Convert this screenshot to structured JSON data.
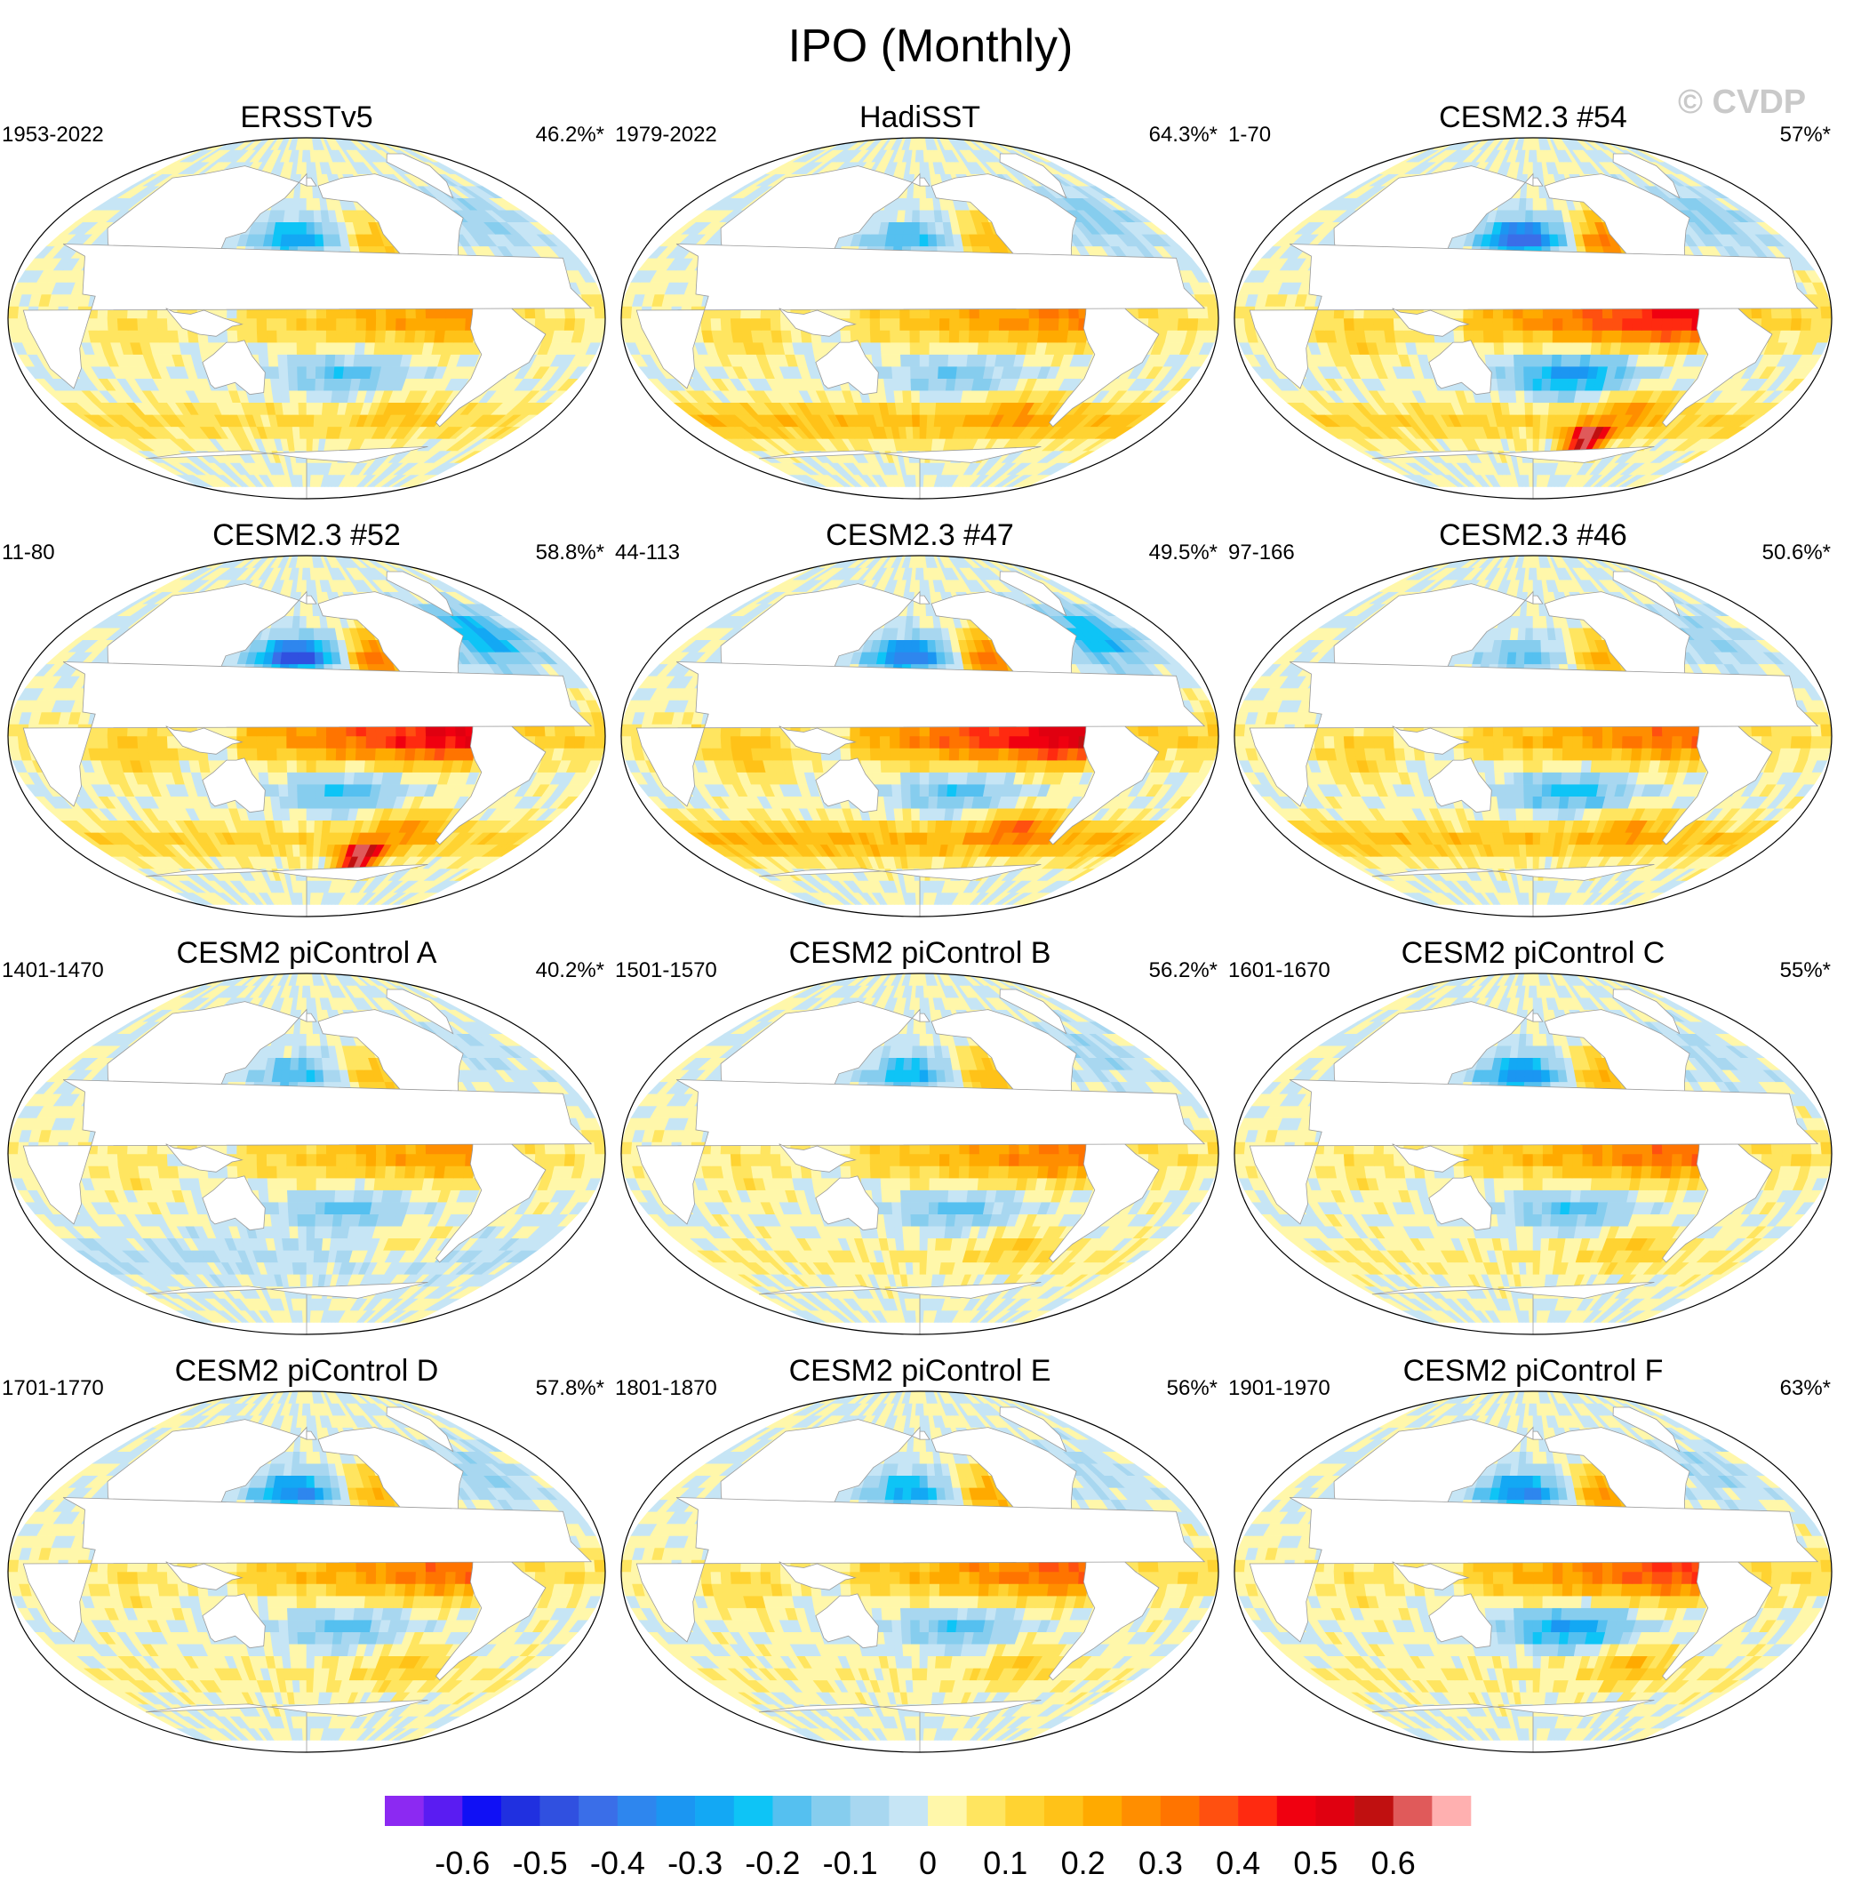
{
  "chart_data": {
    "type": "map-grid",
    "title": "IPO (Monthly)",
    "watermark": "© CVDP",
    "panels": [
      {
        "title": "ERSSTv5",
        "period": "1953-2022",
        "pct": "46.2%*",
        "pattern": {
          "tropical": 0.22,
          "npac": -0.3,
          "spac": -0.18,
          "north_atl": -0.1,
          "south_ocean": 0.1,
          "indian": 0.08,
          "extreme": 0
        }
      },
      {
        "title": "HadiSST",
        "period": "1979-2022",
        "pct": "64.3%*",
        "pattern": {
          "tropical": 0.25,
          "npac": -0.22,
          "spac": -0.15,
          "north_atl": -0.12,
          "south_ocean": 0.18,
          "indian": 0.1,
          "extreme": 0
        }
      },
      {
        "title": "CESM2.3 #54",
        "period": "1-70",
        "pct": "57%*",
        "pattern": {
          "tropical": 0.4,
          "npac": -0.48,
          "spac": -0.32,
          "north_atl": -0.12,
          "south_ocean": 0.12,
          "indian": 0.1,
          "extreme": 1
        }
      },
      {
        "title": "CESM2.3 #52",
        "period": "11-80",
        "pct": "58.8%*",
        "pattern": {
          "tropical": 0.42,
          "npac": -0.52,
          "spac": -0.2,
          "north_atl": -0.28,
          "south_ocean": 0.12,
          "indian": 0.12,
          "extreme": 1
        }
      },
      {
        "title": "CESM2.3 #47",
        "period": "44-113",
        "pct": "49.5%*",
        "pattern": {
          "tropical": 0.45,
          "npac": -0.42,
          "spac": -0.18,
          "north_atl": -0.25,
          "south_ocean": 0.2,
          "indian": 0.14,
          "extreme": 0
        }
      },
      {
        "title": "CESM2.3 #46",
        "period": "97-166",
        "pct": "50.6%*",
        "pattern": {
          "tropical": 0.28,
          "npac": -0.18,
          "spac": -0.22,
          "north_atl": -0.1,
          "south_ocean": 0.16,
          "indian": 0.12,
          "extreme": 0
        }
      },
      {
        "title": "CESM2 piControl A",
        "period": "1401-1470",
        "pct": "40.2%*",
        "pattern": {
          "tropical": 0.22,
          "npac": -0.2,
          "spac": -0.16,
          "north_atl": -0.05,
          "south_ocean": -0.05,
          "indian": 0.05,
          "extreme": 0
        }
      },
      {
        "title": "CESM2 piControl B",
        "period": "1501-1570",
        "pct": "56.2%*",
        "pattern": {
          "tropical": 0.26,
          "npac": -0.26,
          "spac": -0.16,
          "north_atl": -0.08,
          "south_ocean": 0.05,
          "indian": 0.05,
          "extreme": 0
        }
      },
      {
        "title": "CESM2 piControl C",
        "period": "1601-1670",
        "pct": "55%*",
        "pattern": {
          "tropical": 0.28,
          "npac": -0.35,
          "spac": -0.18,
          "north_atl": -0.06,
          "south_ocean": 0.05,
          "indian": 0.05,
          "extreme": 0
        }
      },
      {
        "title": "CESM2 piControl D",
        "period": "1701-1770",
        "pct": "57.8%*",
        "pattern": {
          "tropical": 0.28,
          "npac": -0.38,
          "spac": -0.16,
          "north_atl": -0.1,
          "south_ocean": 0.05,
          "indian": 0.06,
          "extreme": 0
        }
      },
      {
        "title": "CESM2 piControl E",
        "period": "1801-1870",
        "pct": "56%*",
        "pattern": {
          "tropical": 0.3,
          "npac": -0.28,
          "spac": -0.18,
          "north_atl": -0.06,
          "south_ocean": 0.04,
          "indian": 0.08,
          "extreme": 0
        }
      },
      {
        "title": "CESM2 piControl F",
        "period": "1901-1970",
        "pct": "63%*",
        "pattern": {
          "tropical": 0.34,
          "npac": -0.38,
          "spac": -0.3,
          "north_atl": -0.08,
          "south_ocean": 0.05,
          "indian": 0.05,
          "extreme": 0
        }
      }
    ],
    "colorbar": {
      "levels": [
        -0.65,
        -0.6,
        -0.55,
        -0.5,
        -0.45,
        -0.4,
        -0.35,
        -0.3,
        -0.25,
        -0.2,
        -0.15,
        -0.1,
        -0.05,
        0,
        0.05,
        0.1,
        0.15,
        0.2,
        0.25,
        0.3,
        0.35,
        0.4,
        0.45,
        0.5,
        0.55,
        0.6,
        0.65
      ],
      "colors": [
        "#8c29f2",
        "#5a1cf2",
        "#1010f5",
        "#2030e0",
        "#3050e0",
        "#3a6ee8",
        "#2e86ee",
        "#1b96f2",
        "#13a8f4",
        "#0ec4f6",
        "#55c0f0",
        "#86cdee",
        "#a8d7f0",
        "#c6e5f5",
        "#fff7aa",
        "#ffe560",
        "#ffd332",
        "#ffc218",
        "#ffaa00",
        "#ff8e00",
        "#ff7400",
        "#ff5010",
        "#ff2a10",
        "#f00010",
        "#e00010",
        "#c01010",
        "#e05a5a",
        "#ffb0b0"
      ],
      "tick_labels": [
        "-0.6",
        "-0.5",
        "-0.4",
        "-0.3",
        "-0.2",
        "-0.1",
        "0",
        "0.1",
        "0.2",
        "0.3",
        "0.4",
        "0.5",
        "0.6"
      ],
      "tick_values": [
        -0.6,
        -0.5,
        -0.4,
        -0.3,
        -0.2,
        -0.1,
        0,
        0.1,
        0.2,
        0.3,
        0.4,
        0.5,
        0.6
      ]
    }
  }
}
